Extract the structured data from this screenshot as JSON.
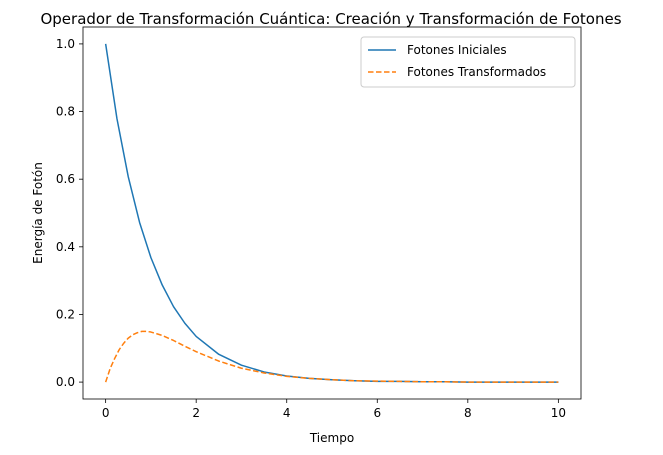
{
  "chart_data": {
    "type": "line",
    "title": "Operador de Transformación Cuántica: Creación y Transformación de Fotones",
    "xlabel": "Tiempo",
    "ylabel": "Energía de Fotón",
    "xlim": [
      -0.5,
      10.5
    ],
    "ylim": [
      -0.05,
      1.05
    ],
    "x_ticks": [
      0,
      2,
      4,
      6,
      8,
      10
    ],
    "y_ticks": [
      0.0,
      0.2,
      0.4,
      0.6,
      0.8,
      1.0
    ],
    "x_tick_labels": [
      "0",
      "2",
      "4",
      "6",
      "8",
      "10"
    ],
    "y_tick_labels": [
      "0.0",
      "0.2",
      "0.4",
      "0.6",
      "0.8",
      "1.0"
    ],
    "grid": false,
    "legend": "top-right",
    "series": [
      {
        "name": "Fotones Iniciales",
        "color": "#1f77b4",
        "style": "solid",
        "x": [
          0,
          0.25,
          0.5,
          0.75,
          1,
          1.25,
          1.5,
          1.75,
          2,
          2.5,
          3,
          3.5,
          4,
          4.5,
          5,
          5.5,
          6,
          6.5,
          7,
          7.5,
          8,
          8.5,
          9,
          9.5,
          10
        ],
        "values": [
          1.0,
          0.779,
          0.607,
          0.472,
          0.368,
          0.287,
          0.223,
          0.174,
          0.135,
          0.082,
          0.05,
          0.03,
          0.018,
          0.011,
          0.007,
          0.004,
          0.002,
          0.002,
          0.001,
          0.001,
          0.0,
          0.0,
          0.0,
          0.0,
          0.0
        ]
      },
      {
        "name": "Fotones Transformados",
        "color": "#ff7f0e",
        "style": "dashed",
        "x": [
          0,
          0.1,
          0.2,
          0.3,
          0.4,
          0.5,
          0.6,
          0.7,
          0.8,
          0.9,
          1,
          1.25,
          1.5,
          1.75,
          2,
          2.5,
          3,
          3.5,
          4,
          4.5,
          5,
          5.5,
          6,
          6.5,
          7,
          7.5,
          8,
          8.5,
          9,
          9.5,
          10
        ],
        "values": [
          0.0,
          0.04,
          0.07,
          0.096,
          0.115,
          0.13,
          0.14,
          0.146,
          0.15,
          0.15,
          0.148,
          0.138,
          0.123,
          0.106,
          0.09,
          0.062,
          0.041,
          0.027,
          0.017,
          0.011,
          0.007,
          0.004,
          0.003,
          0.002,
          0.001,
          0.001,
          0.0,
          0.0,
          0.0,
          0.0,
          0.0
        ]
      }
    ]
  }
}
